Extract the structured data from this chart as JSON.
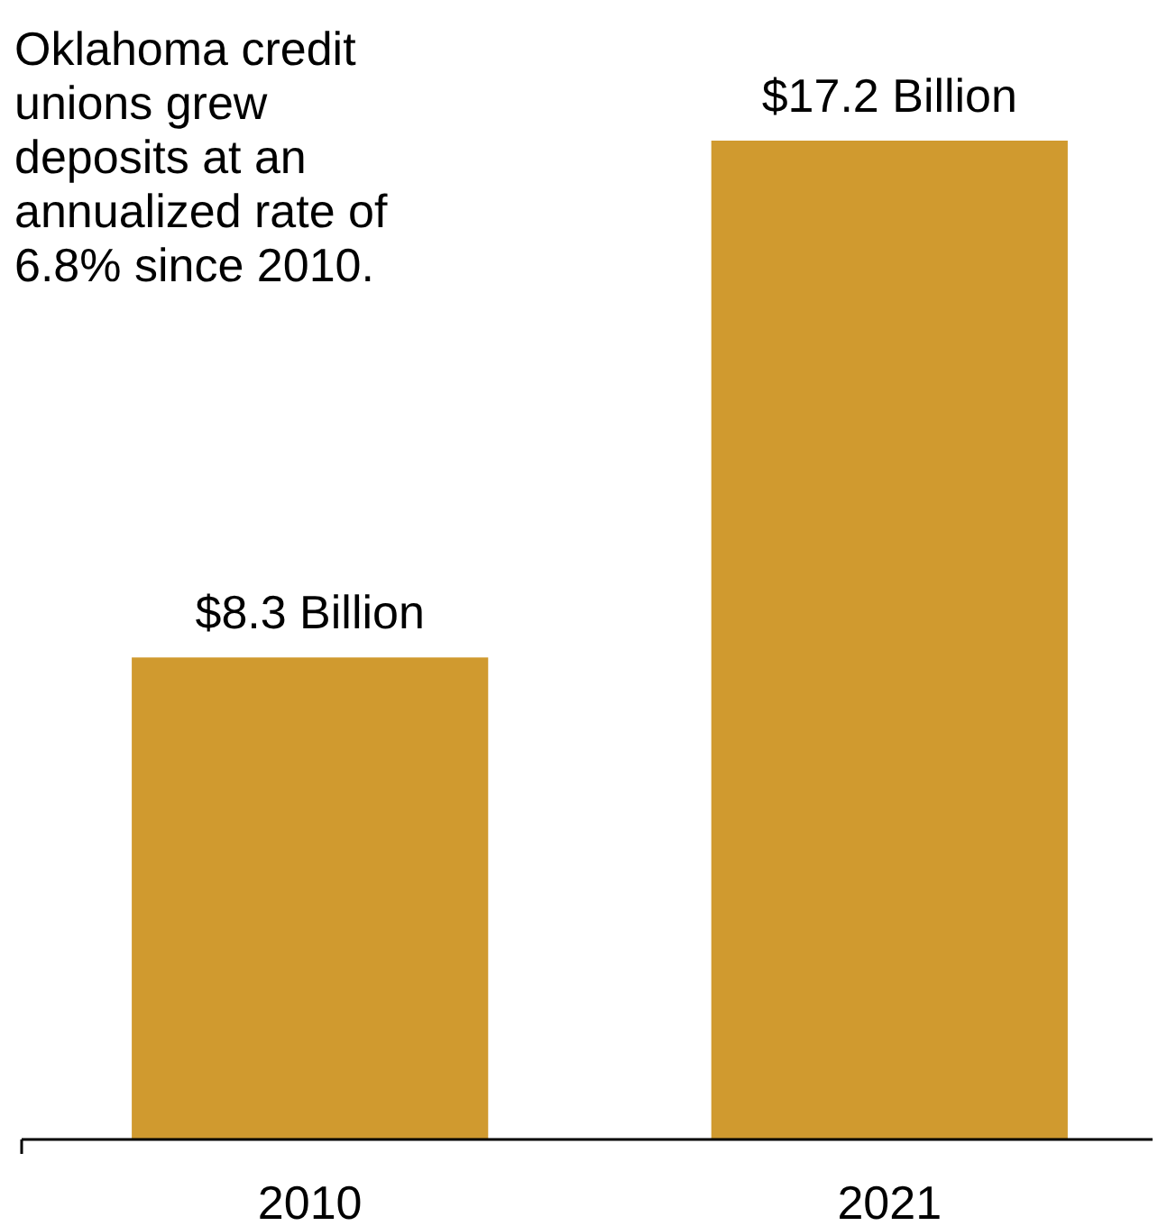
{
  "chart_data": {
    "type": "bar",
    "categories": [
      "2010",
      "2021"
    ],
    "values": [
      8.3,
      17.2
    ],
    "color": "#d09a2f",
    "value_labels": [
      "$8.3 Billion",
      "$17.2 Billion"
    ],
    "annotations": [
      "Oklahoma credit unions grew deposits at an annualized rate of 6.8% since 2010."
    ]
  }
}
